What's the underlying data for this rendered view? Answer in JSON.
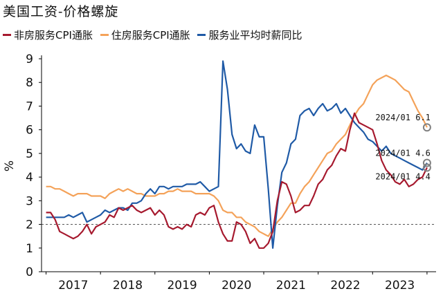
{
  "chart_data": {
    "type": "line",
    "title": "美国工资-价格螺旋",
    "ylabel": "%",
    "ylim": [
      0,
      9
    ],
    "yticks": [
      "0",
      "1",
      "2",
      "3",
      "4",
      "5",
      "6",
      "7",
      "8",
      "9"
    ],
    "xlim": [
      "2016-12",
      "2024-03"
    ],
    "xticks": [
      "2017",
      "2018",
      "2019",
      "2020",
      "2021",
      "2022",
      "2023"
    ],
    "reference_line": {
      "y": 2,
      "style": "dashed"
    },
    "legend_position": "top",
    "series": [
      {
        "name": "非房服务CPI通胀",
        "color": "#A6192E",
        "points": [
          [
            "2017-01",
            2.5
          ],
          [
            "2017-02",
            2.5
          ],
          [
            "2017-03",
            2.2
          ],
          [
            "2017-04",
            1.7
          ],
          [
            "2017-05",
            1.6
          ],
          [
            "2017-06",
            1.5
          ],
          [
            "2017-07",
            1.4
          ],
          [
            "2017-08",
            1.5
          ],
          [
            "2017-09",
            1.7
          ],
          [
            "2017-10",
            2.0
          ],
          [
            "2017-11",
            1.6
          ],
          [
            "2017-12",
            1.9
          ],
          [
            "2018-01",
            2.0
          ],
          [
            "2018-02",
            2.1
          ],
          [
            "2018-03",
            2.4
          ],
          [
            "2018-04",
            2.3
          ],
          [
            "2018-05",
            2.7
          ],
          [
            "2018-06",
            2.6
          ],
          [
            "2018-07",
            2.7
          ],
          [
            "2018-08",
            2.8
          ],
          [
            "2018-09",
            2.6
          ],
          [
            "2018-10",
            2.5
          ],
          [
            "2018-11",
            2.6
          ],
          [
            "2018-12",
            2.7
          ],
          [
            "2019-01",
            2.4
          ],
          [
            "2019-02",
            2.6
          ],
          [
            "2019-03",
            2.4
          ],
          [
            "2019-04",
            1.9
          ],
          [
            "2019-05",
            1.8
          ],
          [
            "2019-06",
            1.9
          ],
          [
            "2019-07",
            1.8
          ],
          [
            "2019-08",
            2.0
          ],
          [
            "2019-09",
            1.9
          ],
          [
            "2019-10",
            2.4
          ],
          [
            "2019-11",
            2.5
          ],
          [
            "2019-12",
            2.4
          ],
          [
            "2020-01",
            2.7
          ],
          [
            "2020-02",
            2.8
          ],
          [
            "2020-03",
            2.1
          ],
          [
            "2020-04",
            1.6
          ],
          [
            "2020-05",
            1.3
          ],
          [
            "2020-06",
            1.3
          ],
          [
            "2020-07",
            2.1
          ],
          [
            "2020-08",
            2.0
          ],
          [
            "2020-09",
            1.7
          ],
          [
            "2020-10",
            1.2
          ],
          [
            "2020-11",
            1.4
          ],
          [
            "2020-12",
            1.0
          ],
          [
            "2021-01",
            1.0
          ],
          [
            "2021-02",
            1.2
          ],
          [
            "2021-03",
            1.7
          ],
          [
            "2021-04",
            3.0
          ],
          [
            "2021-05",
            3.8
          ],
          [
            "2021-06",
            3.7
          ],
          [
            "2021-07",
            3.2
          ],
          [
            "2021-08",
            2.5
          ],
          [
            "2021-09",
            2.6
          ],
          [
            "2021-10",
            2.8
          ],
          [
            "2021-11",
            2.8
          ],
          [
            "2021-12",
            3.2
          ],
          [
            "2022-01",
            3.7
          ],
          [
            "2022-02",
            3.9
          ],
          [
            "2022-03",
            4.3
          ],
          [
            "2022-04",
            4.5
          ],
          [
            "2022-05",
            4.9
          ],
          [
            "2022-06",
            5.2
          ],
          [
            "2022-07",
            5.1
          ],
          [
            "2022-08",
            6.0
          ],
          [
            "2022-09",
            6.7
          ],
          [
            "2022-10",
            6.3
          ],
          [
            "2022-11",
            6.2
          ],
          [
            "2022-12",
            6.1
          ],
          [
            "2023-01",
            6.0
          ],
          [
            "2023-02",
            5.4
          ],
          [
            "2023-03",
            4.7
          ],
          [
            "2023-04",
            4.3
          ],
          [
            "2023-05",
            4.1
          ],
          [
            "2023-06",
            3.8
          ],
          [
            "2023-07",
            3.7
          ],
          [
            "2023-08",
            3.9
          ],
          [
            "2023-09",
            3.6
          ],
          [
            "2023-10",
            3.7
          ],
          [
            "2023-11",
            3.9
          ],
          [
            "2023-12",
            4.0
          ],
          [
            "2024-01",
            4.4
          ]
        ]
      },
      {
        "name": "住房服务CPI通胀",
        "color": "#F4A259",
        "points": [
          [
            "2017-01",
            3.6
          ],
          [
            "2017-02",
            3.6
          ],
          [
            "2017-03",
            3.5
          ],
          [
            "2017-04",
            3.5
          ],
          [
            "2017-05",
            3.4
          ],
          [
            "2017-06",
            3.3
          ],
          [
            "2017-07",
            3.2
          ],
          [
            "2017-08",
            3.3
          ],
          [
            "2017-09",
            3.3
          ],
          [
            "2017-10",
            3.3
          ],
          [
            "2017-11",
            3.2
          ],
          [
            "2017-12",
            3.2
          ],
          [
            "2018-01",
            3.2
          ],
          [
            "2018-02",
            3.1
          ],
          [
            "2018-03",
            3.3
          ],
          [
            "2018-04",
            3.4
          ],
          [
            "2018-05",
            3.5
          ],
          [
            "2018-06",
            3.4
          ],
          [
            "2018-07",
            3.5
          ],
          [
            "2018-08",
            3.4
          ],
          [
            "2018-09",
            3.3
          ],
          [
            "2018-10",
            3.3
          ],
          [
            "2018-11",
            3.2
          ],
          [
            "2018-12",
            3.2
          ],
          [
            "2019-01",
            3.2
          ],
          [
            "2019-02",
            3.3
          ],
          [
            "2019-03",
            3.3
          ],
          [
            "2019-04",
            3.4
          ],
          [
            "2019-05",
            3.4
          ],
          [
            "2019-06",
            3.5
          ],
          [
            "2019-07",
            3.4
          ],
          [
            "2019-08",
            3.4
          ],
          [
            "2019-09",
            3.4
          ],
          [
            "2019-10",
            3.3
          ],
          [
            "2019-11",
            3.3
          ],
          [
            "2019-12",
            3.3
          ],
          [
            "2020-01",
            3.3
          ],
          [
            "2020-02",
            3.2
          ],
          [
            "2020-03",
            3.0
          ],
          [
            "2020-04",
            2.6
          ],
          [
            "2020-05",
            2.5
          ],
          [
            "2020-06",
            2.5
          ],
          [
            "2020-07",
            2.3
          ],
          [
            "2020-08",
            2.3
          ],
          [
            "2020-09",
            2.1
          ],
          [
            "2020-10",
            2.0
          ],
          [
            "2020-11",
            1.9
          ],
          [
            "2020-12",
            1.7
          ],
          [
            "2021-01",
            1.6
          ],
          [
            "2021-02",
            1.5
          ],
          [
            "2021-03",
            1.8
          ],
          [
            "2021-04",
            2.1
          ],
          [
            "2021-05",
            2.3
          ],
          [
            "2021-06",
            2.6
          ],
          [
            "2021-07",
            2.9
          ],
          [
            "2021-08",
            2.9
          ],
          [
            "2021-09",
            3.3
          ],
          [
            "2021-10",
            3.6
          ],
          [
            "2021-11",
            3.8
          ],
          [
            "2021-12",
            4.1
          ],
          [
            "2022-01",
            4.4
          ],
          [
            "2022-02",
            4.7
          ],
          [
            "2022-03",
            5.0
          ],
          [
            "2022-04",
            5.1
          ],
          [
            "2022-05",
            5.4
          ],
          [
            "2022-06",
            5.6
          ],
          [
            "2022-07",
            5.8
          ],
          [
            "2022-08",
            6.2
          ],
          [
            "2022-09",
            6.6
          ],
          [
            "2022-10",
            6.9
          ],
          [
            "2022-11",
            7.1
          ],
          [
            "2022-12",
            7.5
          ],
          [
            "2023-01",
            7.9
          ],
          [
            "2023-02",
            8.1
          ],
          [
            "2023-03",
            8.2
          ],
          [
            "2023-04",
            8.3
          ],
          [
            "2023-05",
            8.2
          ],
          [
            "2023-06",
            8.1
          ],
          [
            "2023-07",
            7.9
          ],
          [
            "2023-08",
            7.7
          ],
          [
            "2023-09",
            7.6
          ],
          [
            "2023-10",
            7.2
          ],
          [
            "2023-11",
            6.8
          ],
          [
            "2023-12",
            6.5
          ],
          [
            "2024-01",
            6.1
          ]
        ]
      },
      {
        "name": "服务业平均时薪同比",
        "color": "#1F5AA6",
        "points": [
          [
            "2017-01",
            2.3
          ],
          [
            "2017-02",
            2.3
          ],
          [
            "2017-03",
            2.3
          ],
          [
            "2017-04",
            2.3
          ],
          [
            "2017-05",
            2.3
          ],
          [
            "2017-06",
            2.4
          ],
          [
            "2017-07",
            2.3
          ],
          [
            "2017-08",
            2.4
          ],
          [
            "2017-09",
            2.5
          ],
          [
            "2017-10",
            2.1
          ],
          [
            "2017-11",
            2.2
          ],
          [
            "2017-12",
            2.3
          ],
          [
            "2018-01",
            2.4
          ],
          [
            "2018-02",
            2.6
          ],
          [
            "2018-03",
            2.5
          ],
          [
            "2018-04",
            2.6
          ],
          [
            "2018-05",
            2.7
          ],
          [
            "2018-06",
            2.7
          ],
          [
            "2018-07",
            2.6
          ],
          [
            "2018-08",
            2.9
          ],
          [
            "2018-09",
            2.9
          ],
          [
            "2018-10",
            3.0
          ],
          [
            "2018-11",
            3.3
          ],
          [
            "2018-12",
            3.5
          ],
          [
            "2019-01",
            3.3
          ],
          [
            "2019-02",
            3.6
          ],
          [
            "2019-03",
            3.6
          ],
          [
            "2019-04",
            3.5
          ],
          [
            "2019-05",
            3.6
          ],
          [
            "2019-06",
            3.6
          ],
          [
            "2019-07",
            3.6
          ],
          [
            "2019-08",
            3.7
          ],
          [
            "2019-09",
            3.7
          ],
          [
            "2019-10",
            3.7
          ],
          [
            "2019-11",
            3.8
          ],
          [
            "2019-12",
            3.6
          ],
          [
            "2020-01",
            3.4
          ],
          [
            "2020-02",
            3.5
          ],
          [
            "2020-03",
            3.6
          ],
          [
            "2020-04",
            8.9
          ],
          [
            "2020-05",
            7.7
          ],
          [
            "2020-06",
            5.8
          ],
          [
            "2020-07",
            5.2
          ],
          [
            "2020-08",
            5.4
          ],
          [
            "2020-09",
            5.1
          ],
          [
            "2020-10",
            5.0
          ],
          [
            "2020-11",
            6.2
          ],
          [
            "2020-12",
            5.7
          ],
          [
            "2021-01",
            5.7
          ],
          [
            "2021-02",
            3.5
          ],
          [
            "2021-03",
            1.0
          ],
          [
            "2021-04",
            2.8
          ],
          [
            "2021-05",
            4.2
          ],
          [
            "2021-06",
            4.6
          ],
          [
            "2021-07",
            5.4
          ],
          [
            "2021-08",
            5.6
          ],
          [
            "2021-09",
            6.6
          ],
          [
            "2021-10",
            6.8
          ],
          [
            "2021-11",
            6.9
          ],
          [
            "2021-12",
            6.6
          ],
          [
            "2022-01",
            6.9
          ],
          [
            "2022-02",
            7.1
          ],
          [
            "2022-03",
            6.8
          ],
          [
            "2022-04",
            6.9
          ],
          [
            "2022-05",
            7.1
          ],
          [
            "2022-06",
            6.7
          ],
          [
            "2022-07",
            6.9
          ],
          [
            "2022-08",
            6.6
          ],
          [
            "2022-09",
            6.3
          ],
          [
            "2022-10",
            6.1
          ],
          [
            "2022-11",
            5.9
          ],
          [
            "2022-12",
            5.6
          ],
          [
            "2023-01",
            5.5
          ],
          [
            "2023-02",
            5.3
          ],
          [
            "2023-03",
            5.1
          ],
          [
            "2023-04",
            5.3
          ],
          [
            "2023-05",
            5.0
          ],
          [
            "2023-06",
            4.9
          ],
          [
            "2023-07",
            4.8
          ],
          [
            "2023-08",
            4.7
          ],
          [
            "2023-09",
            4.6
          ],
          [
            "2023-10",
            4.5
          ],
          [
            "2023-11",
            4.4
          ],
          [
            "2023-12",
            4.3
          ],
          [
            "2024-01",
            4.6
          ]
        ]
      }
    ],
    "annotations": [
      {
        "date": "2024-01",
        "value": 6.1,
        "label": "2024/01 6.1"
      },
      {
        "date": "2024-01",
        "value": 4.6,
        "label": "2024/01 4.6"
      },
      {
        "date": "2024-01",
        "value": 4.4,
        "label": "2024/01 4.4"
      }
    ]
  }
}
